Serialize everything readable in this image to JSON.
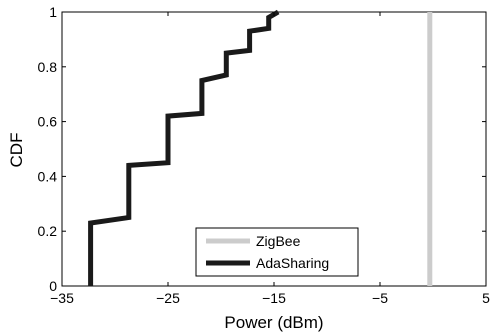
{
  "chart_data": {
    "type": "line",
    "xlabel": "Power (dBm)",
    "ylabel": "CDF",
    "xlim": [
      -35,
      5
    ],
    "ylim": [
      0,
      1
    ],
    "x_ticks": [
      -35,
      -25,
      -15,
      -5,
      5
    ],
    "x_tick_labels": [
      "−35",
      "−25",
      "−15",
      "−5",
      "5"
    ],
    "y_ticks": [
      0,
      0.2,
      0.4,
      0.6,
      0.8,
      1
    ],
    "y_tick_labels": [
      "0",
      "0.2",
      "0.4",
      "0.6",
      "0.8",
      "1"
    ],
    "grid": false,
    "legend_position": "bottom-center",
    "series": [
      {
        "name": "ZigBee",
        "color": "#cccccc",
        "x": [
          -0.3,
          -0.3
        ],
        "y": [
          0,
          1
        ]
      },
      {
        "name": "AdaSharing",
        "color": "#1a1a1a",
        "x": [
          -32.3,
          -32.3,
          -28.7,
          -28.7,
          -25,
          -25,
          -21.8,
          -21.8,
          -19.5,
          -19.5,
          -17.3,
          -17.3,
          -15.5,
          -15.5,
          -14.6
        ],
        "y": [
          0,
          0.23,
          0.25,
          0.44,
          0.45,
          0.62,
          0.63,
          0.75,
          0.77,
          0.85,
          0.86,
          0.93,
          0.94,
          0.98,
          1.0
        ]
      }
    ]
  }
}
